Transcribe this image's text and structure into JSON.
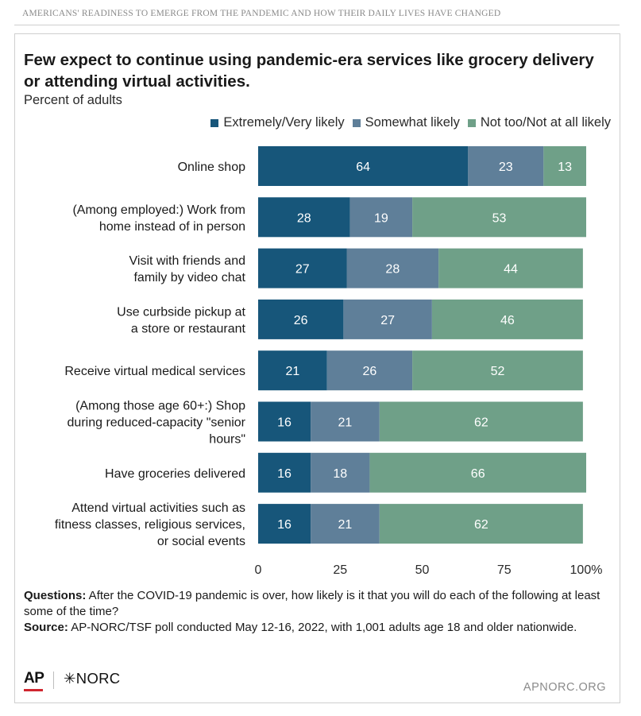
{
  "header": {
    "kicker": "AMERICANS' READINESS TO EMERGE FROM THE PANDEMIC AND HOW THEIR DAILY LIVES HAVE CHANGED"
  },
  "chart_data": {
    "type": "bar",
    "orientation": "horizontal",
    "stacked": true,
    "title": "Few expect to continue using pandemic-era services like grocery delivery or attending virtual activities.",
    "subtitle": "Percent of adults",
    "legend_position": "top-right",
    "categories": [
      [
        "Online shop"
      ],
      [
        "(Among employed:) Work from",
        "home instead of in person"
      ],
      [
        "Visit with friends and",
        "family by video chat"
      ],
      [
        "Use curbside pickup at",
        "a store or restaurant"
      ],
      [
        "Receive virtual medical services"
      ],
      [
        "(Among those age 60+:) Shop",
        "during reduced-capacity \"senior",
        "hours\""
      ],
      [
        "Have groceries delivered"
      ],
      [
        "Attend virtual activities such as",
        "fitness classes, religious services,",
        "or social events"
      ]
    ],
    "series": [
      {
        "name": "Extremely/Very likely",
        "color": "#17567a",
        "values": [
          64,
          28,
          27,
          26,
          21,
          16,
          16,
          16
        ]
      },
      {
        "name": "Somewhat likely",
        "color": "#5f7f99",
        "values": [
          23,
          19,
          28,
          27,
          26,
          21,
          18,
          21
        ]
      },
      {
        "name": "Not too/Not at all likely",
        "color": "#6fa088",
        "values": [
          13,
          53,
          44,
          46,
          52,
          62,
          66,
          62
        ]
      }
    ],
    "xlim": [
      0,
      100
    ],
    "x_ticks": [
      "0",
      "25",
      "50",
      "75",
      "100%"
    ],
    "x_tick_values": [
      0,
      25,
      50,
      75,
      100
    ],
    "grid": false
  },
  "notes": {
    "questions_label": "Questions:",
    "questions_text": " After the COVID-19 pandemic is over, how likely is it that you will do each of the following at least some of the time?",
    "source_label": "Source:",
    "source_text": " AP-NORC/TSF poll conducted May 12-16, 2022, with 1,001 adults age 18 and older nationwide."
  },
  "footer": {
    "logo_ap": "AP",
    "logo_norc": "✳NORC",
    "site": "APNORC.ORG"
  }
}
